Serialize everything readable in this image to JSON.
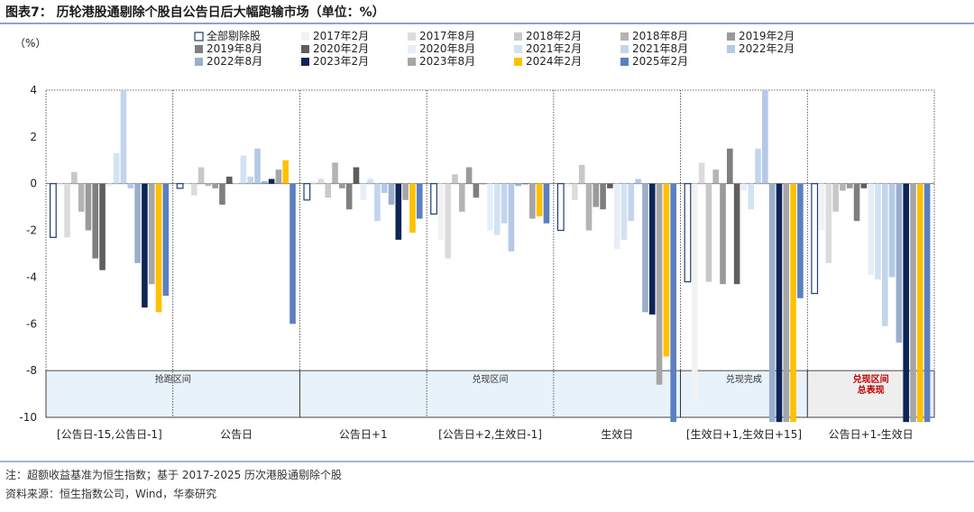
{
  "header": {
    "title": "图表7：  历轮港股通剔除个股自公告日后大幅跑输市场（单位：%）"
  },
  "chart_data": {
    "type": "bar",
    "title": "图表7：  历轮港股通剔除个股自公告日后大幅跑输市场（单位：%）",
    "ylabel": "（%）",
    "ylim": [
      -10,
      4
    ],
    "yticks": [
      4,
      2,
      0,
      -2,
      -4,
      -6,
      -8,
      -10
    ],
    "grid": false,
    "legend_placement": "top",
    "categories": [
      "[公告日-15,公告日-1]",
      "公告日",
      "公告日+1",
      "[公告日+2,生效日-1]",
      "生效日",
      "[生效日+1,生效日+15]",
      "公告日+1-生效日"
    ],
    "bands": [
      {
        "span": [
          0,
          1
        ],
        "label": "抢跑区间",
        "color": "#e8f2fb",
        "text_color": "#333333"
      },
      {
        "span": [
          2,
          4
        ],
        "label": "兑现区间",
        "color": "#e8f2fb",
        "text_color": "#333333"
      },
      {
        "span": [
          5,
          5
        ],
        "label": "兑现完成",
        "color": "#e8f2fb",
        "text_color": "#333333"
      },
      {
        "span": [
          6,
          6
        ],
        "label": "兑现区间\n总表现",
        "color": "#eeeeee",
        "text_color": "#c00000"
      }
    ],
    "series": [
      {
        "name": "全部剔除股",
        "color": "#ffffff",
        "stroke": "#1f3b70",
        "values": [
          -2.3,
          -0.2,
          -0.7,
          -1.3,
          -2.0,
          -4.2,
          -4.7
        ]
      },
      {
        "name": "2017年2月",
        "color": "#f2f2f2",
        "values": [
          -0.1,
          0.0,
          0.1,
          -2.4,
          -0.1,
          -9.4,
          -2.0
        ]
      },
      {
        "name": "2017年8月",
        "color": "#dcdcdc",
        "values": [
          -2.3,
          -0.5,
          0.2,
          -3.2,
          -0.7,
          0.9,
          -3.4
        ]
      },
      {
        "name": "2018年2月",
        "color": "#c8c8c8",
        "values": [
          0.5,
          0.7,
          -0.6,
          0.4,
          0.8,
          -4.2,
          -1.2
        ]
      },
      {
        "name": "2018年8月",
        "color": "#b4b4b4",
        "values": [
          -1.2,
          -0.1,
          0.9,
          -1.2,
          -2.0,
          0.6,
          -0.3
        ]
      },
      {
        "name": "2019年2月",
        "color": "#9a9a9a",
        "values": [
          -2.0,
          -0.2,
          -0.2,
          0.7,
          -1.0,
          -4.3,
          -0.2
        ]
      },
      {
        "name": "2019年8月",
        "color": "#7f7f7f",
        "values": [
          -3.2,
          -0.9,
          -1.1,
          -0.6,
          -1.1,
          1.5,
          -1.6
        ]
      },
      {
        "name": "2020年2月",
        "color": "#5e5e5e",
        "values": [
          -3.7,
          0.3,
          0.7,
          0.0,
          -0.2,
          -4.3,
          -0.2
        ]
      },
      {
        "name": "2020年8月",
        "color": "#e6eef7",
        "values": [
          -0.1,
          0.0,
          -0.7,
          -2.0,
          -2.8,
          -0.3,
          -3.9
        ]
      },
      {
        "name": "2021年2月",
        "color": "#d2e2f3",
        "values": [
          1.3,
          1.2,
          0.2,
          -2.2,
          -2.4,
          -1.1,
          -4.1
        ]
      },
      {
        "name": "2021年8月",
        "color": "#c2d5ec",
        "values": [
          4.0,
          0.3,
          -1.6,
          -1.7,
          -1.6,
          1.5,
          -6.1
        ]
      },
      {
        "name": "2022年2月",
        "color": "#b3c9e6",
        "values": [
          -0.2,
          1.5,
          -0.4,
          -2.9,
          0.2,
          4.0,
          -4.0
        ]
      },
      {
        "name": "2022年8月",
        "color": "#9aaecc",
        "values": [
          -3.4,
          0.1,
          -0.9,
          -0.1,
          -5.5,
          -10.2,
          -6.8
        ]
      },
      {
        "name": "2023年2月",
        "color": "#0d2557",
        "values": [
          -5.3,
          0.2,
          -2.4,
          0.0,
          -5.6,
          -10.2,
          -10.2
        ]
      },
      {
        "name": "2023年8月",
        "color": "#a6a6a6",
        "values": [
          -4.3,
          0.6,
          -0.7,
          -1.5,
          -8.6,
          -10.2,
          -10.2
        ]
      },
      {
        "name": "2024年2月",
        "color": "#ffc000",
        "values": [
          -5.5,
          1.0,
          -2.1,
          -1.4,
          -7.4,
          -10.2,
          -10.2
        ]
      },
      {
        "name": "2025年2月",
        "color": "#5b7fc0",
        "values": [
          -4.8,
          -6.0,
          -1.5,
          -1.7,
          -10.2,
          -4.9,
          -10.2
        ]
      }
    ]
  },
  "footer": {
    "note": "注：超额收益基准为恒生指数；基于 2017-2025 历次港股通剔除个股",
    "source": "资料来源：恒生指数公司，Wind，华泰研究"
  }
}
